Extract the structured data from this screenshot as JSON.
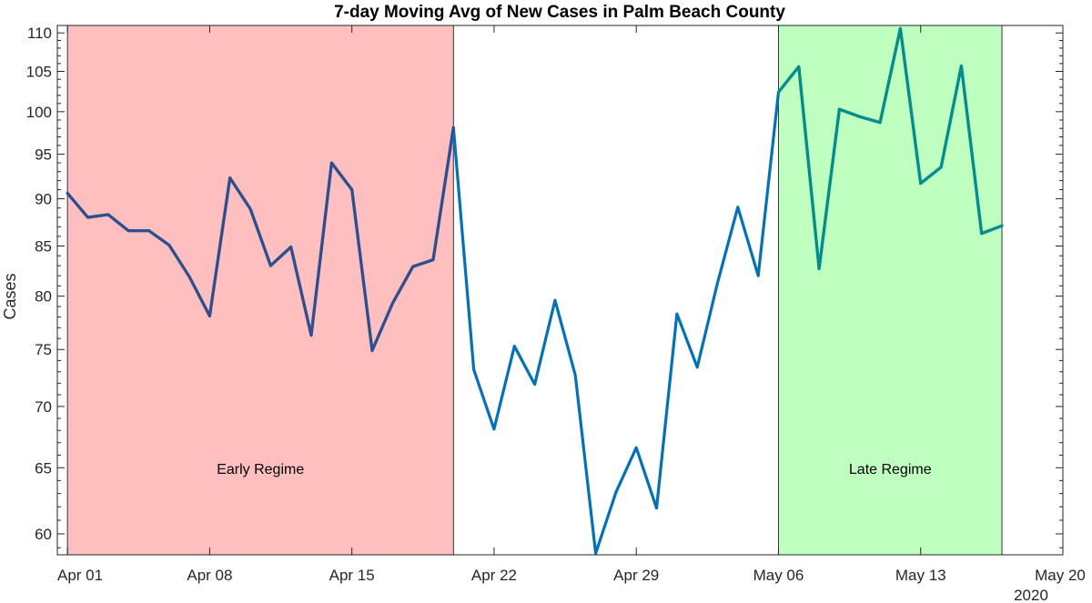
{
  "chart_data": {
    "type": "line",
    "title": "7-day Moving Avg of New Cases in Palm Beach County",
    "ylabel": "Cases",
    "xlabel": "",
    "y_scale": "log",
    "ylim": [
      58.5,
      111
    ],
    "y_ticks": [
      60,
      65,
      70,
      75,
      80,
      85,
      90,
      95,
      100,
      105,
      110
    ],
    "x_ticks": [
      "Apr 01",
      "Apr 08",
      "Apr 15",
      "Apr 22",
      "Apr 29",
      "May 06",
      "May 13",
      "May 20"
    ],
    "x_secondary_label": "2020",
    "grid": false,
    "regimes": [
      {
        "label": "Early Regime",
        "start": "2020-04-01",
        "end": "2020-04-20",
        "color": "#ffbfbf"
      },
      {
        "label": "Late Regime",
        "start": "2020-05-06",
        "end": "2020-05-17",
        "color": "#bfffbf"
      }
    ],
    "series": [
      {
        "color": "#0072bd",
        "x": [
          "2020-04-01",
          "2020-04-02",
          "2020-04-03",
          "2020-04-04",
          "2020-04-05",
          "2020-04-06",
          "2020-04-07",
          "2020-04-08",
          "2020-04-09",
          "2020-04-10",
          "2020-04-11",
          "2020-04-12",
          "2020-04-13",
          "2020-04-14",
          "2020-04-15",
          "2020-04-16",
          "2020-04-17",
          "2020-04-18",
          "2020-04-19",
          "2020-04-20",
          "2020-04-21",
          "2020-04-22",
          "2020-04-23",
          "2020-04-24",
          "2020-04-25",
          "2020-04-26",
          "2020-04-27",
          "2020-04-28",
          "2020-04-29",
          "2020-04-30",
          "2020-05-01",
          "2020-05-02",
          "2020-05-03",
          "2020-05-04",
          "2020-05-05",
          "2020-05-06",
          "2020-05-07",
          "2020-05-08",
          "2020-05-09",
          "2020-05-10",
          "2020-05-11",
          "2020-05-12",
          "2020-05-13",
          "2020-05-14",
          "2020-05-15",
          "2020-05-16",
          "2020-05-17"
        ],
        "values": [
          90.6,
          88.0,
          88.3,
          86.6,
          86.6,
          85.1,
          81.9,
          78.1,
          92.3,
          88.9,
          83.0,
          84.9,
          76.3,
          94.0,
          91.0,
          74.9,
          79.3,
          82.9,
          83.6,
          98.1,
          73.2,
          68.1,
          75.3,
          71.9,
          79.6,
          72.7,
          58.6,
          63.1,
          66.6,
          61.9,
          78.3,
          73.4,
          81.3,
          89.1,
          82.0,
          102.4,
          105.6,
          82.7,
          100.3,
          99.4,
          98.7,
          110.6,
          91.7,
          93.5,
          105.7,
          86.3,
          87.1
        ]
      }
    ]
  }
}
